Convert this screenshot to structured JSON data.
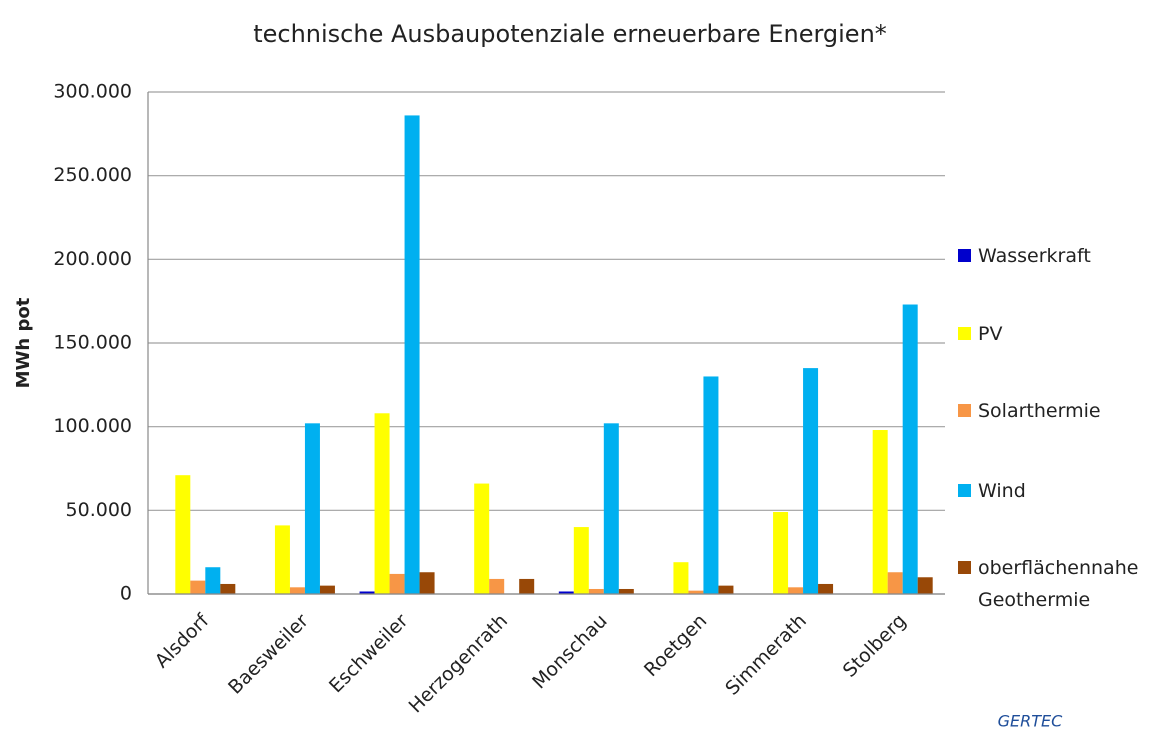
{
  "chart_data": {
    "type": "bar",
    "title": "technische Ausbaupotenziale erneuerbare Energien*",
    "y_label": "MWh pot",
    "categories": [
      "Alsdorf",
      "Baesweiler",
      "Eschweiler",
      "Herzogenrath",
      "Monschau",
      "Roetgen",
      "Simmerath",
      "Stolberg"
    ],
    "series": [
      {
        "name": "Wasserkraft",
        "color": "#0000cc",
        "values": [
          0,
          0,
          1500,
          0,
          1500,
          0,
          0,
          0
        ]
      },
      {
        "name": "PV",
        "color": "#ffff00",
        "values": [
          71000,
          41000,
          108000,
          66000,
          40000,
          19000,
          49000,
          98000
        ]
      },
      {
        "name": "Solarthermie",
        "color": "#f79646",
        "values": [
          8000,
          4000,
          12000,
          9000,
          3000,
          2000,
          4000,
          13000
        ]
      },
      {
        "name": "Wind",
        "color": "#00b0f0",
        "values": [
          16000,
          102000,
          286000,
          0,
          102000,
          130000,
          135000,
          173000
        ]
      },
      {
        "name": "oberflächennahe Geothermie",
        "color": "#984807",
        "values": [
          6000,
          5000,
          13000,
          9000,
          3000,
          5000,
          6000,
          10000
        ]
      }
    ],
    "ylim": [
      0,
      300000
    ],
    "yticks": [
      0,
      {
        "value": 50000,
        "label": "50.000"
      },
      {
        "value": 100000,
        "label": "100.000"
      },
      {
        "value": 150000,
        "label": "150.000"
      },
      {
        "value": 200000,
        "label": "200.000"
      },
      {
        "value": 250000,
        "label": "250.000"
      },
      {
        "value": 300000,
        "label": "300.000"
      }
    ],
    "grid": true,
    "legend": "right",
    "logo": "GERTEC"
  }
}
